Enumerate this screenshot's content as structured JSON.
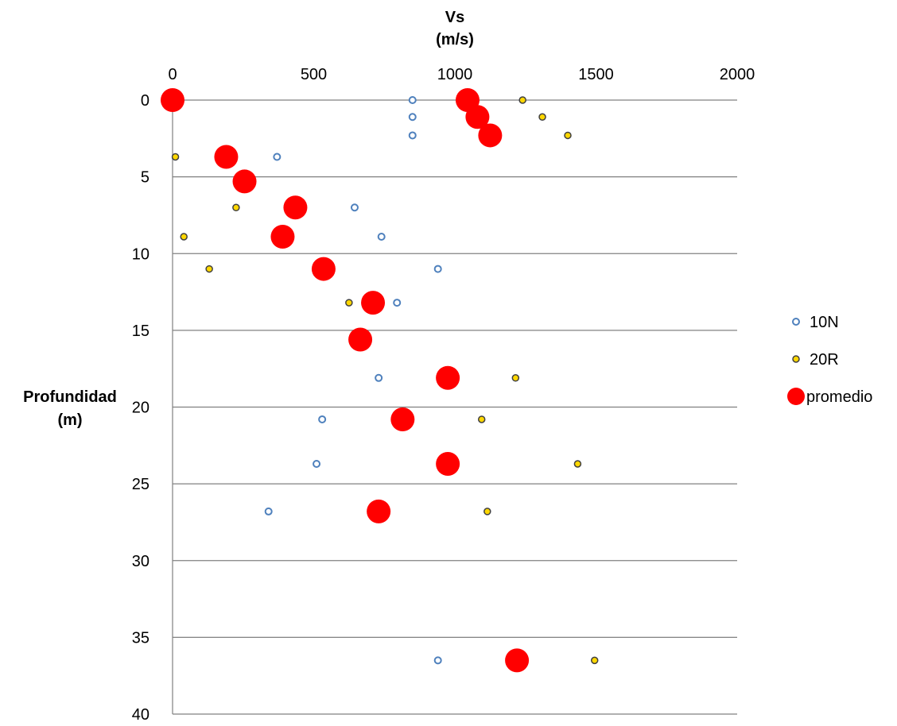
{
  "chart_data": {
    "type": "scatter",
    "title": "",
    "xlabel_lines": [
      "Vs",
      "(m/s)"
    ],
    "ylabel_lines": [
      "Profundidad",
      "(m)"
    ],
    "xlim": [
      0,
      2000
    ],
    "ylim": [
      0,
      40
    ],
    "y_inverted": true,
    "x_axis_position": "top",
    "x_ticks": [
      0,
      500,
      1000,
      1500,
      2000
    ],
    "y_ticks": [
      0,
      5,
      10,
      15,
      20,
      25,
      30,
      35,
      40
    ],
    "grid": "horizontal",
    "legend_position": "right",
    "series": [
      {
        "name": "10N",
        "marker": "hollow-circle-small",
        "color": "#4f81bd",
        "fill": "#ffffff",
        "points": [
          {
            "x": 850,
            "y": 0
          },
          {
            "x": 850,
            "y": 1.1
          },
          {
            "x": 850,
            "y": 2.3
          },
          {
            "x": 370,
            "y": 3.7
          },
          {
            "x": 645,
            "y": 7
          },
          {
            "x": 740,
            "y": 8.9
          },
          {
            "x": 940,
            "y": 11
          },
          {
            "x": 795,
            "y": 13.2
          },
          {
            "x": 730,
            "y": 18.1
          },
          {
            "x": 530,
            "y": 20.8
          },
          {
            "x": 510,
            "y": 23.7
          },
          {
            "x": 340,
            "y": 26.8
          },
          {
            "x": 940,
            "y": 36.5
          }
        ]
      },
      {
        "name": "20R",
        "marker": "filled-circle-small",
        "color": "#404040",
        "fill": "#ffd700",
        "points": [
          {
            "x": 1240,
            "y": 0
          },
          {
            "x": 1310,
            "y": 1.1
          },
          {
            "x": 1400,
            "y": 2.3
          },
          {
            "x": 10,
            "y": 3.7
          },
          {
            "x": 225,
            "y": 7
          },
          {
            "x": 40,
            "y": 8.9
          },
          {
            "x": 130,
            "y": 11
          },
          {
            "x": 625,
            "y": 13.2
          },
          {
            "x": 1215,
            "y": 18.1
          },
          {
            "x": 1095,
            "y": 20.8
          },
          {
            "x": 1435,
            "y": 23.7
          },
          {
            "x": 1115,
            "y": 26.8
          },
          {
            "x": 1495,
            "y": 36.5
          }
        ]
      },
      {
        "name": "promedio",
        "marker": "filled-circle-large",
        "color": "#ff0000",
        "fill": "#ff0000",
        "points": [
          {
            "x": 0,
            "y": 0
          },
          {
            "x": 1045,
            "y": 0
          },
          {
            "x": 1080,
            "y": 1.1
          },
          {
            "x": 1125,
            "y": 2.3
          },
          {
            "x": 190,
            "y": 3.7
          },
          {
            "x": 255,
            "y": 5.3
          },
          {
            "x": 435,
            "y": 7
          },
          {
            "x": 390,
            "y": 8.9
          },
          {
            "x": 535,
            "y": 11
          },
          {
            "x": 710,
            "y": 13.2
          },
          {
            "x": 665,
            "y": 15.6
          },
          {
            "x": 975,
            "y": 18.1
          },
          {
            "x": 815,
            "y": 20.8
          },
          {
            "x": 975,
            "y": 23.7
          },
          {
            "x": 730,
            "y": 26.8
          },
          {
            "x": 1220,
            "y": 36.5
          }
        ]
      }
    ]
  }
}
